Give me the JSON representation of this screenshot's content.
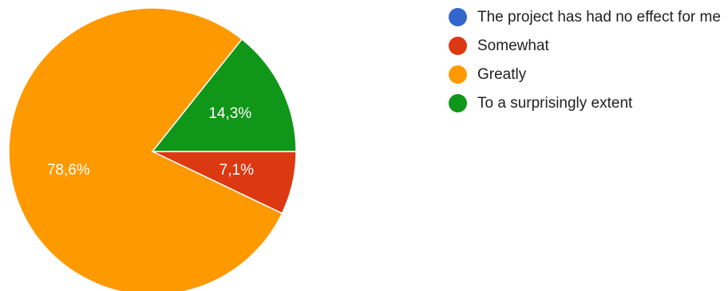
{
  "chart_data": {
    "type": "pie",
    "slices": [
      {
        "label": "The project has had no effect for me",
        "value": 0.0,
        "display": "",
        "color": "#3366cc"
      },
      {
        "label": "Somewhat",
        "value": 7.1,
        "display": "7,1%",
        "color": "#dc3912"
      },
      {
        "label": "Greatly",
        "value": 78.6,
        "display": "78,6%",
        "color": "#ff9900"
      },
      {
        "label": "To a surprisingly extent",
        "value": 14.3,
        "display": "14,3%",
        "color": "#109618"
      }
    ],
    "start_angle_deg": 0,
    "direction": "clockwise",
    "legend_position": "right"
  }
}
